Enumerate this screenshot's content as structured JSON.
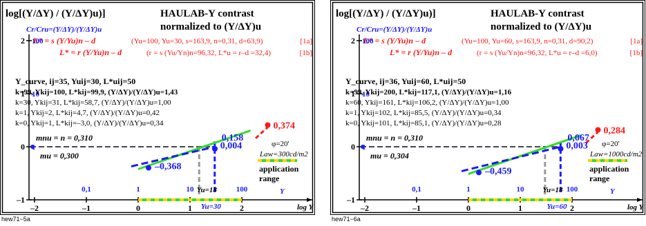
{
  "colors": {
    "black": "#000000",
    "blue": "#1a1aff",
    "red": "#ff1a1a",
    "green": "#33dd22",
    "gray": "#999999",
    "yellow": "#ffd400"
  },
  "chart_data": [
    {
      "type": "line",
      "title_left": "log[(Y/ΔY) / (Y/ΔY)u)]",
      "title_right_1": "HAULAB-Y contrast",
      "title_right_2": "normalized to (Y/ΔY)u",
      "subtitle": "Cr/Cru=(Y/ΔY)/(Y/ΔY)u",
      "formula_a": "L* = s (Y/Yu)n – d",
      "params_a": "(Yu=100, Yu=30, s=163,9, n=0,31, d=63,9)",
      "tag_a": "[1a]",
      "formula_b": "L* = r (Y/Yu)n – d",
      "params_b": "(r = s (Yu/Yn)n=96,32, L*u = r–d =32,4)",
      "tag_b": "[1b]",
      "curve_title": "Y_curve, ij=35, Yuij=30, L*uij=50",
      "rows": [
        "k=99, Ykij=100, L*kij=99,9, (Y/ΔY)/(Y/ΔY)u=1,43",
        "k=30, Ykij=31, L*kij=58,7, (Y/ΔY)/(Y/ΔY)u=1,00",
        "k=1, Ykij=2, L*kij=4,7, (Y/ΔY)/(Y/ΔY)u=0,42",
        "k=0, Ykij=1, L*kij=–3,0, (Y/ΔY)/(Y/ΔY)u=0,34"
      ],
      "mnu": "mnu = n = 0,310",
      "mu": "mu = 0,300",
      "y_ticks": [
        "2",
        "1",
        "0",
        "–1"
      ],
      "y_ticks_blue": [
        "100",
        "10",
        "1"
      ],
      "x_ticks": [
        "–2",
        "–1",
        "0",
        "1",
        "2"
      ],
      "x_ticks_blue": [
        "0,1",
        "1",
        "10",
        "100"
      ],
      "x_label": "log Y",
      "y_blue_label": "Y",
      "yu_label": "Yu=30",
      "yu18_label": "Yu=18",
      "val_top": "0,374",
      "val_mid": "0,158",
      "val_zero": "0,004",
      "val_low": "–0,368",
      "phi": "φ=20'",
      "law": "Law=300cd/m2",
      "app1": "application",
      "app2": "range",
      "footer": "hew71−5a",
      "yu_x": 1.477,
      "points": [
        {
          "x": 0,
          "y": -0.37
        },
        {
          "x": 1.48,
          "y": 0.0
        },
        {
          "x": 2.5,
          "y": 0.37
        }
      ],
      "red_points": [
        {
          "x": 2.0,
          "y": 0.16
        },
        {
          "x": 2.5,
          "y": 0.37
        }
      ]
    },
    {
      "type": "line",
      "title_left": "log[(Y/ΔY) / (Y/ΔY)u)]",
      "title_right_1": "HAULAB-Y contrast",
      "title_right_2": "normalized to (Y/ΔY)u",
      "subtitle": "Cr/Cru=(Y/ΔY)/(Y/ΔY)u",
      "formula_a": "L* = s (Y/Yu)n – d",
      "params_a": "(Yu=100, Yu=60, s=163,9, n=0,31, d=90,2)",
      "tag_a": "[1a]",
      "formula_b": "L* = r (Y/Yu)n – d",
      "params_b": "(r = s (Yu/Yn)n=96,32, L*u = r–d =6,0)",
      "tag_b": "[1b]",
      "curve_title": "Y_curve, ij=36, Yuij=60, L*uij=50",
      "rows": [
        "k=99, Ykij=200, L*kij=117,1, (Y/ΔY)/(Y/ΔY)u=1,16",
        "k=60, Ykij=161, L*kij=106,2, (Y/ΔY)/(Y/ΔY)u=1,00",
        "k=1, Ykij=102, L*kij=85,5, (Y/ΔY)/(Y/ΔY)u=0,34",
        "k=0, Ykij=101, L*kij=85,1, (Y/ΔY)/(Y/ΔY)u=0,28"
      ],
      "mnu": "mnu = n = 0,310",
      "mu": "mu = 0,304",
      "y_ticks": [
        "2",
        "1",
        "0",
        "–1"
      ],
      "y_ticks_blue": [
        "100",
        "10",
        "1"
      ],
      "x_ticks": [
        "–2",
        "–1",
        "0",
        "1",
        "2"
      ],
      "x_ticks_blue": [
        "0,1",
        "1",
        "10",
        "100"
      ],
      "x_label": "log Y",
      "y_blue_label": "Y",
      "yu_label": "Yu=60",
      "yu18_label": "Yu=18",
      "val_top": "0,284",
      "val_mid": "0,067",
      "val_zero": "0,003",
      "val_low": "–0,459",
      "phi": "φ=20'",
      "law": "Law=1000cd/m2",
      "app1": "application",
      "app2": "range",
      "footer": "hew71−6a",
      "yu_x": 1.778,
      "points": [
        {
          "x": 0,
          "y": -0.46
        },
        {
          "x": 1.78,
          "y": 0.0
        },
        {
          "x": 2.5,
          "y": 0.28
        }
      ],
      "red_points": [
        {
          "x": 2.0,
          "y": 0.07
        },
        {
          "x": 2.5,
          "y": 0.28
        }
      ]
    }
  ]
}
